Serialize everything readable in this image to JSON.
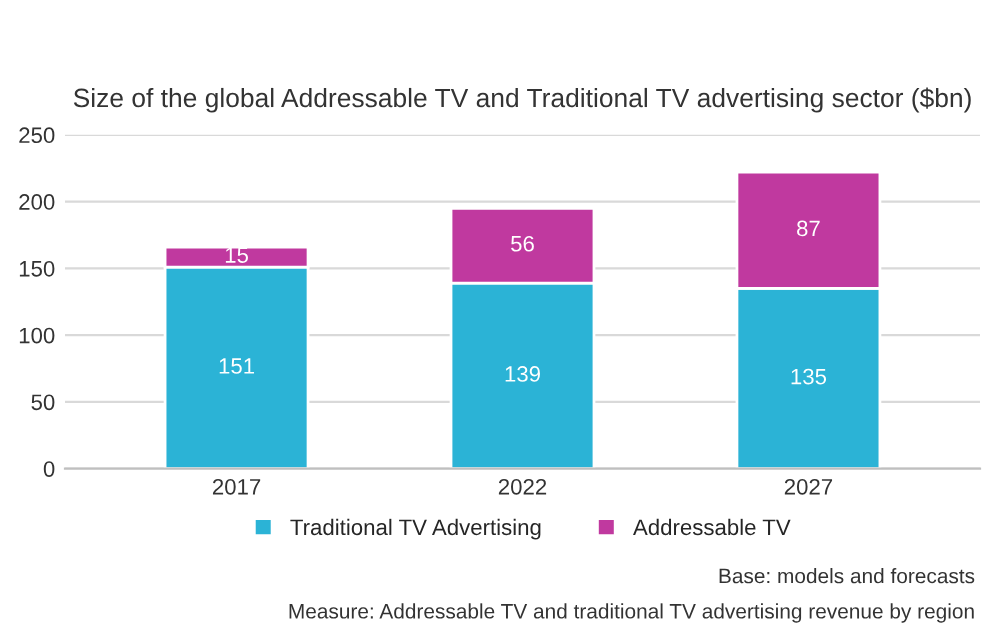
{
  "chart_data": {
    "type": "bar",
    "title": "Size of the global Addressable TV and Traditional TV advertising sector ($bn)",
    "categories": [
      "2017",
      "2022",
      "2027"
    ],
    "series": [
      {
        "name": "Traditional TV Advertising",
        "color": "#2bb3d6",
        "values": [
          151,
          139,
          135
        ]
      },
      {
        "name": "Addressable TV",
        "color": "#c0399f",
        "values": [
          15,
          56,
          87
        ]
      }
    ],
    "stacked": true,
    "data_labels": true,
    "ylim": [
      0,
      250
    ],
    "yticks": [
      0,
      50,
      100,
      150,
      200,
      250
    ],
    "grid": "y",
    "legend": "bottom",
    "annotations": [
      "Base: models and forecasts",
      "Measure: Addressable TV and traditional TV advertising revenue by region"
    ]
  }
}
